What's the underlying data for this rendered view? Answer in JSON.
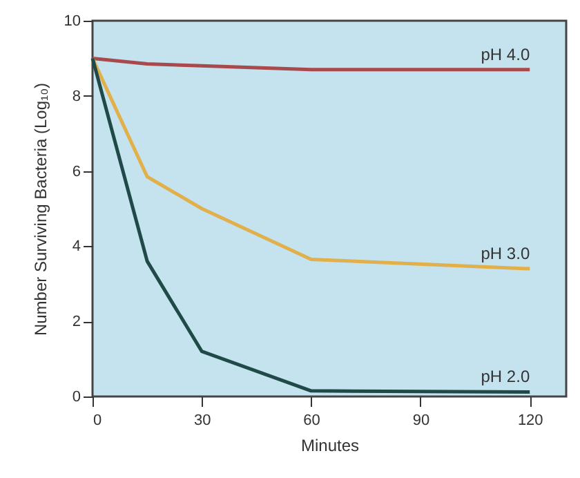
{
  "chart_data": {
    "type": "line",
    "xlabel": "Minutes",
    "ylabel": "Number Surviving Bacteria (Log₁₀)",
    "x": [
      0,
      15,
      30,
      60,
      120
    ],
    "series": [
      {
        "name": "pH 4.0",
        "color": "#a8494c",
        "values": [
          9,
          8.85,
          8.8,
          8.7,
          8.7
        ]
      },
      {
        "name": "pH 3.0",
        "color": "#e2b04a",
        "values": [
          9,
          5.85,
          5,
          3.65,
          3.4
        ]
      },
      {
        "name": "pH 2.0",
        "color": "#1f4a48",
        "values": [
          9,
          3.6,
          1.2,
          0.15,
          0.12
        ]
      }
    ],
    "xlim": [
      0,
      130
    ],
    "xticks": [
      0,
      30,
      60,
      90,
      120
    ],
    "ylim": [
      0,
      10
    ],
    "yticks": [
      0,
      2,
      4,
      6,
      8,
      10
    ],
    "grid": false,
    "marker": "none",
    "line_style": "solid"
  }
}
